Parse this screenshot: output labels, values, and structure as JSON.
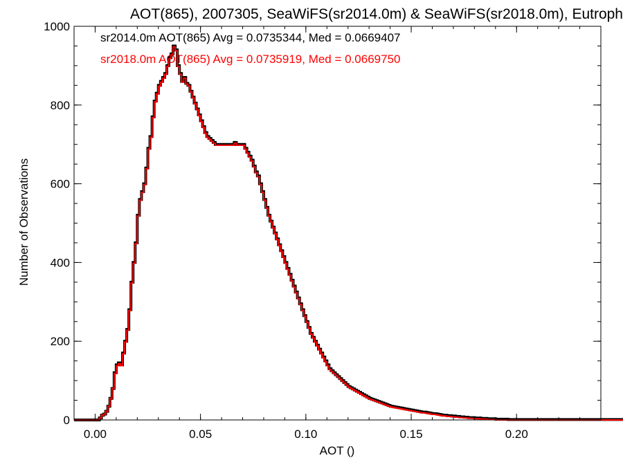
{
  "chart_data": {
    "type": "line",
    "title": "AOT(865), 2007305, SeaWiFS(sr2014.0m) & SeaWiFS(sr2018.0m), Eutroph",
    "xlabel": "AOT ()",
    "ylabel": "Number of Observations",
    "xlim": [
      -0.01,
      0.24
    ],
    "ylim": [
      0,
      1000
    ],
    "x_ticks": [
      "0.00",
      "0.05",
      "0.10",
      "0.15",
      "0.20"
    ],
    "y_ticks": [
      "0",
      "200",
      "400",
      "600",
      "800",
      "1000"
    ],
    "bin_start": -0.01,
    "bin_width": 0.001,
    "series": [
      {
        "name": "sr2014.0m",
        "color": "#000000",
        "stats_label": "sr2014.0m AOT(865) Avg = 0.0735344, Med = 0.0669407",
        "values": [
          0,
          0,
          0,
          0,
          0,
          0,
          0,
          0,
          0,
          0,
          0,
          0,
          5,
          12,
          15,
          22,
          35,
          55,
          80,
          120,
          140,
          145,
          140,
          170,
          200,
          230,
          280,
          350,
          400,
          450,
          520,
          560,
          580,
          600,
          640,
          690,
          720,
          770,
          810,
          830,
          850,
          860,
          870,
          880,
          900,
          920,
          930,
          950,
          940,
          900,
          880,
          860,
          870,
          855,
          850,
          835,
          820,
          805,
          790,
          775,
          760,
          745,
          730,
          720,
          715,
          710,
          705,
          700,
          700,
          700,
          700,
          700,
          700,
          700,
          700,
          700,
          705,
          700,
          700,
          700,
          700,
          690,
          680,
          670,
          660,
          645,
          630,
          620,
          600,
          580,
          560,
          540,
          520,
          505,
          490,
          475,
          460,
          445,
          430,
          415,
          400,
          385,
          370,
          355,
          340,
          325,
          310,
          295,
          280,
          265,
          250,
          235,
          220,
          210,
          200,
          190,
          180,
          170,
          160,
          150,
          140,
          130,
          125,
          120,
          115,
          110,
          105,
          100,
          95,
          90,
          85,
          82,
          79,
          76,
          73,
          70,
          67,
          64,
          61,
          58,
          55,
          53,
          51,
          49,
          47,
          45,
          43,
          41,
          39,
          37,
          35,
          34,
          33,
          32,
          31,
          30,
          29,
          28,
          27,
          26,
          25,
          24,
          23,
          22,
          21,
          20,
          20,
          19,
          18,
          17,
          16,
          16,
          15,
          14,
          13,
          12,
          12,
          11,
          11,
          10,
          10,
          9,
          9,
          8,
          8,
          7,
          7,
          6,
          6,
          6,
          5,
          5,
          5,
          4,
          4,
          4,
          3,
          3,
          3,
          3,
          2,
          2,
          2,
          2,
          2,
          2,
          1,
          1,
          1,
          1,
          1,
          1,
          1,
          1,
          1,
          1,
          1,
          1,
          1,
          1,
          1,
          1,
          1,
          1,
          1,
          1,
          1,
          1,
          1,
          1,
          1,
          1,
          1,
          1,
          1,
          1,
          1,
          1,
          1,
          1,
          1,
          1,
          1,
          1,
          1,
          1,
          1,
          1,
          1,
          1,
          1,
          1,
          1,
          1,
          1,
          1,
          1,
          1,
          1,
          1,
          1,
          1
        ]
      },
      {
        "name": "sr2018.0m",
        "color": "#ff0000",
        "stats_label": "sr2018.0m AOT(865) Avg = 0.0735919, Med = 0.0669750",
        "values": [
          0,
          0,
          0,
          0,
          0,
          0,
          0,
          0,
          0,
          0,
          0,
          0,
          5,
          12,
          15,
          22,
          35,
          55,
          80,
          118,
          138,
          143,
          138,
          168,
          198,
          228,
          278,
          348,
          398,
          448,
          518,
          558,
          578,
          598,
          638,
          688,
          718,
          768,
          808,
          828,
          848,
          858,
          868,
          878,
          898,
          918,
          928,
          948,
          938,
          898,
          878,
          858,
          868,
          853,
          848,
          833,
          818,
          803,
          788,
          773,
          758,
          743,
          728,
          718,
          713,
          708,
          703,
          698,
          698,
          698,
          698,
          698,
          698,
          698,
          698,
          698,
          703,
          698,
          698,
          698,
          698,
          688,
          678,
          668,
          658,
          643,
          628,
          618,
          598,
          578,
          558,
          538,
          518,
          503,
          488,
          473,
          458,
          443,
          428,
          413,
          398,
          383,
          368,
          353,
          338,
          323,
          308,
          293,
          278,
          263,
          248,
          233,
          218,
          208,
          198,
          188,
          178,
          168,
          158,
          148,
          138,
          128,
          123,
          118,
          113,
          108,
          103,
          98,
          93,
          88,
          83,
          80,
          77,
          74,
          71,
          68,
          65,
          62,
          59,
          56,
          53,
          51,
          49,
          47,
          45,
          43,
          41,
          39,
          37,
          35,
          33,
          32,
          31,
          30,
          29,
          28,
          27,
          26,
          25,
          24,
          23,
          22,
          21,
          20,
          19,
          18,
          18,
          17,
          16,
          15,
          14,
          14,
          13,
          12,
          11,
          10,
          10,
          9,
          9,
          8,
          8,
          7,
          7,
          6,
          6,
          5,
          5,
          4,
          4,
          4,
          3,
          3,
          3,
          2,
          2,
          2,
          1,
          1,
          1,
          1,
          0,
          0,
          0,
          0,
          0,
          0,
          0,
          0,
          0,
          0,
          0,
          0,
          0,
          0,
          0,
          0,
          0,
          0,
          0,
          0,
          0,
          0,
          0,
          0,
          0,
          0,
          0,
          0,
          0,
          0,
          0,
          0,
          0,
          0,
          0,
          0,
          0,
          0,
          0,
          0,
          0,
          0,
          0,
          0,
          0,
          0,
          0,
          0,
          0,
          0,
          0,
          0,
          0,
          0,
          0,
          0,
          0,
          0,
          0,
          0,
          0,
          0,
          0,
          0,
          0,
          0,
          0
        ]
      }
    ]
  }
}
